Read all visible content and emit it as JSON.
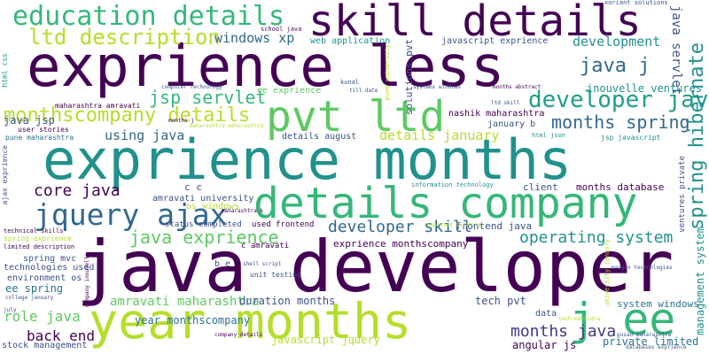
{
  "palette": {
    "dark_purple": "#440154",
    "indigo": "#3b528b",
    "teal": "#21918c",
    "green": "#5ec962",
    "sea_green": "#35b779",
    "lime": "#b5de2b",
    "yellow": "#fde725",
    "background": "#ffffff"
  },
  "words": [
    {
      "text": "java developer",
      "color": "#440154"
    },
    {
      "text": "exprience months",
      "color": "#21918c"
    },
    {
      "text": "exprience less",
      "color": "#440154"
    },
    {
      "text": "year months",
      "color": "#b5de2b"
    },
    {
      "text": "details company",
      "color": "#35b779"
    },
    {
      "text": "skill details",
      "color": "#440154"
    },
    {
      "text": "pvt ltd",
      "color": "#5ec962"
    },
    {
      "text": "education details",
      "color": "#35b779"
    },
    {
      "text": "j ee",
      "color": "#35b779"
    },
    {
      "text": "jquery ajax",
      "color": "#31688e"
    },
    {
      "text": "ltd description",
      "color": "#b5de2b"
    },
    {
      "text": "developer java",
      "color": "#1f9e89"
    },
    {
      "text": "monthscompany details",
      "color": "#b5de2b"
    },
    {
      "text": "spring hibernate",
      "color": "#21918c"
    },
    {
      "text": "java j",
      "color": "#31688e"
    },
    {
      "text": "months spring",
      "color": "#31688e"
    },
    {
      "text": "jsp servlet",
      "color": "#35b779"
    },
    {
      "text": "java exprience",
      "color": "#5ec962"
    },
    {
      "text": "operating system",
      "color": "#21918c"
    },
    {
      "text": "developer skill",
      "color": "#31688e"
    },
    {
      "text": "core java",
      "color": "#440154"
    },
    {
      "text": "months java",
      "color": "#443983"
    },
    {
      "text": "amravati maharashtra",
      "color": "#5ec962"
    },
    {
      "text": "java servlet",
      "color": "#3b528b"
    },
    {
      "text": "windows xp",
      "color": "#31688e"
    },
    {
      "text": "development",
      "color": "#21918c"
    },
    {
      "text": "details january",
      "color": "#b5de2b"
    },
    {
      "text": "using java",
      "color": "#31688e"
    },
    {
      "text": "role java",
      "color": "#5ec962"
    },
    {
      "text": "back end",
      "color": "#440154"
    },
    {
      "text": "ee spring",
      "color": "#2c728e"
    },
    {
      "text": "java jsp",
      "color": "#3b528b"
    },
    {
      "text": "year monthscompany",
      "color": "#2c728e"
    },
    {
      "text": "javascript jquery",
      "color": "#b5de2b"
    },
    {
      "text": "duration months",
      "color": "#3b528b"
    },
    {
      "text": "management system",
      "color": "#21918c"
    },
    {
      "text": "inouvelle ventures",
      "color": "#21918c"
    },
    {
      "text": "tech pvt",
      "color": "#3b528b"
    },
    {
      "text": "angular js",
      "color": "#440154"
    },
    {
      "text": "private limited",
      "color": "#2c728e"
    },
    {
      "text": "system windows",
      "color": "#2c728e"
    },
    {
      "text": "exprience monthscompany",
      "color": "#440154"
    },
    {
      "text": "frontend java",
      "color": "#3b528b"
    },
    {
      "text": "months database",
      "color": "#440154"
    },
    {
      "text": "javascript exprience",
      "color": "#3b528b"
    },
    {
      "text": "web application",
      "color": "#21918c"
    },
    {
      "text": "solutions pvt",
      "color": "#3b528b"
    },
    {
      "text": "ee exprience",
      "color": "#5ec962"
    },
    {
      "text": "nashik maharashtra",
      "color": "#440154"
    },
    {
      "text": "january b",
      "color": "#3b528b"
    },
    {
      "text": "details august",
      "color": "#3b528b"
    },
    {
      "text": "environment os",
      "color": "#3b528b"
    },
    {
      "text": "technologies used",
      "color": "#3b528b"
    },
    {
      "text": "spring mvc",
      "color": "#3b528b"
    },
    {
      "text": "c c",
      "color": "#3b528b"
    },
    {
      "text": "amravati university",
      "color": "#3b528b"
    },
    {
      "text": "os windows",
      "color": "#b5de2b"
    },
    {
      "text": "status completed",
      "color": "#3b528b"
    },
    {
      "text": "used frontend",
      "color": "#440154"
    },
    {
      "text": "c amravati",
      "color": "#440154"
    },
    {
      "text": "unit testing",
      "color": "#3b528b"
    },
    {
      "text": "client",
      "color": "#3b528b"
    },
    {
      "text": "data",
      "color": "#3b528b"
    },
    {
      "text": "b e",
      "color": "#3b528b"
    },
    {
      "text": "stock management",
      "color": "#3b528b"
    },
    {
      "text": "pune maharashtra",
      "color": "#2c728e"
    },
    {
      "text": "maharashtra amravati",
      "color": "#440154"
    },
    {
      "text": "information technology",
      "color": "#21918c"
    },
    {
      "text": "jsp javascript",
      "color": "#21918c"
    },
    {
      "text": "html json",
      "color": "#21918c"
    },
    {
      "text": "user stories",
      "color": "#440154"
    },
    {
      "text": "spring exprience",
      "color": "#b5de2b"
    },
    {
      "text": "limited description",
      "color": "#440154"
    },
    {
      "text": "technical skills",
      "color": "#440154"
    },
    {
      "text": "ajax exprience",
      "color": "#3b528b"
    },
    {
      "text": "html css",
      "color": "#21918c"
    },
    {
      "text": "school java",
      "color": "#440154"
    },
    {
      "text": "kunal",
      "color": "#3b528b"
    },
    {
      "text": "xoriant solutions",
      "color": "#3b528b"
    },
    {
      "text": "computer technology",
      "color": "#3b528b"
    },
    {
      "text": "till date",
      "color": "#3b528b"
    },
    {
      "text": "systems windows",
      "color": "#3b528b"
    },
    {
      "text": "months abstract",
      "color": "#440154"
    },
    {
      "text": "ltd skill",
      "color": "#3b528b"
    },
    {
      "text": "pune university",
      "color": "#b5de2b"
    },
    {
      "text": "months j",
      "color": "#440154"
    },
    {
      "text": "maharashtra k",
      "color": "#440154"
    },
    {
      "text": "maharashtra maharashtra",
      "color": "#b5de2b"
    },
    {
      "text": "completed duration",
      "color": "#b5de2b"
    },
    {
      "text": "margen technologies",
      "color": "#3b528b"
    },
    {
      "text": "pusad maharashtra",
      "color": "#3b528b"
    },
    {
      "text": "tech mahindra",
      "color": "#b5de2b"
    },
    {
      "text": "university january",
      "color": "#b5de2b"
    },
    {
      "text": "ventures private",
      "color": "#3b528b"
    },
    {
      "text": "databases exprience",
      "color": "#3b528b"
    },
    {
      "text": "company details",
      "color": "#440154"
    },
    {
      "text": "company inouvelle",
      "color": "#440154"
    },
    {
      "text": "college january",
      "color": "#3b528b"
    },
    {
      "text": "shell script",
      "color": "#3b528b"
    },
    {
      "text": "july",
      "color": "#3b528b"
    }
  ]
}
